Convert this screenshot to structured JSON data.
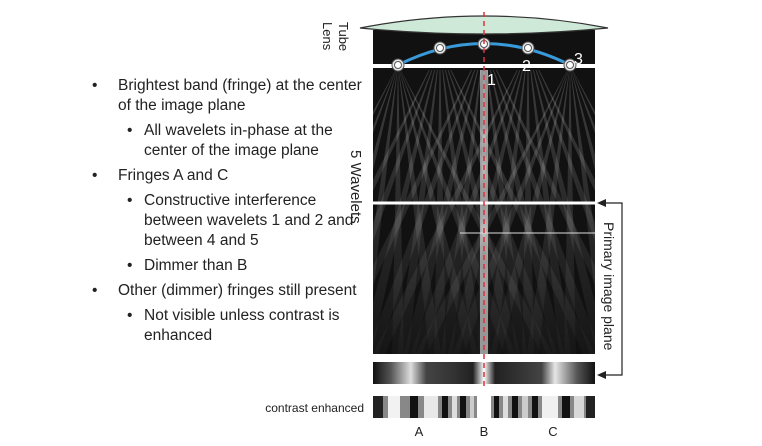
{
  "bullets": [
    {
      "level": 1,
      "text": "Brightest band (fringe) at the center of the image plane"
    },
    {
      "level": 2,
      "text": "All wavelets in-phase at the center of the image plane"
    },
    {
      "level": 1,
      "text": "Fringes A and C"
    },
    {
      "level": 2,
      "text": "Constructive interference between wavelets 1 and 2 and between 4 and 5"
    },
    {
      "level": 2,
      "text": "Dimmer than B"
    },
    {
      "level": 1,
      "text": "Other (dimmer) fringes still present"
    },
    {
      "level": 2,
      "text": "Not visible unless contrast is enhanced"
    }
  ],
  "labels": {
    "tube_lens": [
      "Tube",
      "Lens"
    ],
    "wavelets": "5 Wavelets",
    "primary_image_plane": "Primary image plane",
    "contrast_enhanced": "contrast enhanced",
    "wavelet_numbers": [
      "1",
      "2",
      "3"
    ],
    "fringe_letters": [
      "A",
      "B",
      "C"
    ]
  },
  "colors": {
    "lens_fill": "#cfe9d8",
    "arc": "#3a9ad9",
    "centerline": "#e0303c",
    "background_dark": "#111111"
  }
}
